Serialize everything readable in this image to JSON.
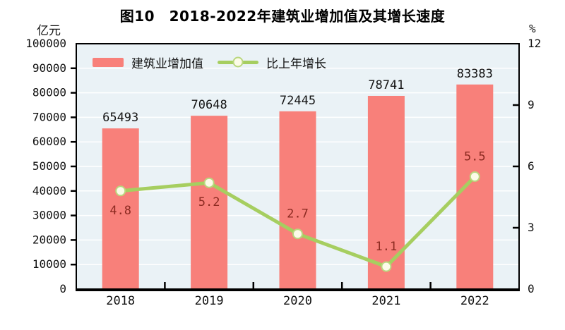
{
  "title": "图10　2018-2022年建筑业增加值及其增长速度",
  "left_axis_unit": "亿元",
  "right_axis_unit": "%",
  "legend": [
    {
      "label": "建筑业增加值",
      "type": "bar"
    },
    {
      "label": "比上年增长",
      "type": "line"
    }
  ],
  "colors": {
    "bar": "#F8807A",
    "line": "#A6CE60",
    "marker_fill": "#FCFBE8",
    "marker_stroke": "#B9D77E",
    "line_label": "#8C2A21",
    "plot_bg": "#EAF2F6",
    "gridline": "#FFFFFF",
    "axis": "#000000",
    "text": "#141414"
  },
  "chart_data": {
    "type": "bar",
    "subtype": "bar+line dual axis",
    "title": "图10　2018-2022年建筑业增加值及其增长速度",
    "categories": [
      "2018",
      "2019",
      "2020",
      "2021",
      "2022"
    ],
    "series": [
      {
        "name": "建筑业增加值",
        "type": "bar",
        "axis": "left",
        "values": [
          65493,
          70648,
          72445,
          78741,
          83383
        ],
        "labels": [
          "65493",
          "70648",
          "72445",
          "78741",
          "83383"
        ]
      },
      {
        "name": "比上年增长",
        "type": "line",
        "axis": "right",
        "values": [
          4.8,
          5.2,
          2.7,
          1.1,
          5.5
        ],
        "labels": [
          "4.8",
          "5.2",
          "2.7",
          "1.1",
          "5.5"
        ],
        "label_position": [
          "below",
          "below",
          "above",
          "above",
          "above"
        ]
      }
    ],
    "left_axis": {
      "unit": "亿元",
      "min": 0,
      "max": 100000,
      "step": 10000,
      "ticks": [
        "0",
        "10000",
        "20000",
        "30000",
        "40000",
        "50000",
        "60000",
        "70000",
        "80000",
        "90000",
        "100000"
      ]
    },
    "right_axis": {
      "unit": "%",
      "min": 0,
      "max": 12,
      "step": 3,
      "ticks": [
        "0",
        "3",
        "6",
        "9",
        "12"
      ]
    },
    "grid": true,
    "legend_position": "top-left-inside"
  }
}
